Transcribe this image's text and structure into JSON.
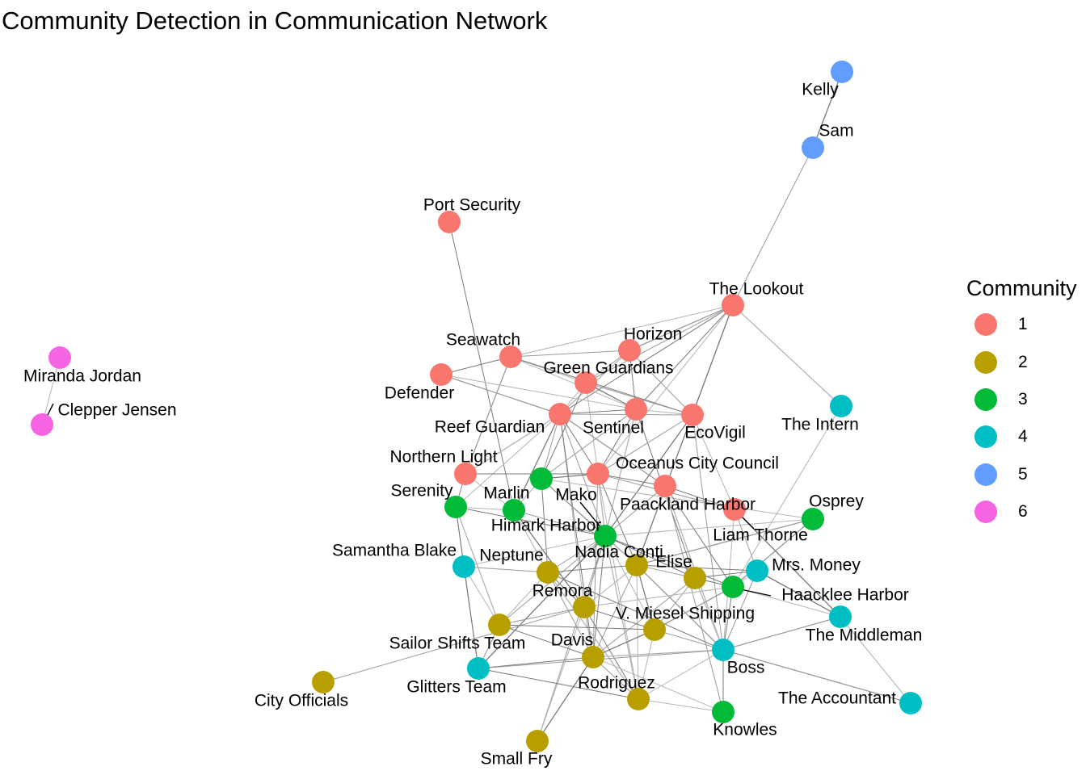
{
  "title": "Community Detection in Communication Network",
  "legend": {
    "title": "Community",
    "items": [
      {
        "label": "1",
        "color": "#F8766D"
      },
      {
        "label": "2",
        "color": "#B79F00"
      },
      {
        "label": "3",
        "color": "#00BA38"
      },
      {
        "label": "4",
        "color": "#00BFC4"
      },
      {
        "label": "5",
        "color": "#619CFF"
      },
      {
        "label": "6",
        "color": "#F564E3"
      }
    ]
  },
  "communities": {
    "1": "#F8766D",
    "2": "#B79F00",
    "3": "#00BA38",
    "4": "#00BFC4",
    "5": "#619CFF",
    "6": "#F564E3"
  },
  "nodes": [
    {
      "id": "Kelly",
      "community": 5
    },
    {
      "id": "Sam",
      "community": 5
    },
    {
      "id": "Port Security",
      "community": 1
    },
    {
      "id": "The Lookout",
      "community": 1
    },
    {
      "id": "Miranda Jordan",
      "community": 6
    },
    {
      "id": "Clepper Jensen",
      "community": 6
    },
    {
      "id": "Seawatch",
      "community": 1
    },
    {
      "id": "Horizon",
      "community": 1
    },
    {
      "id": "Green Guardians",
      "community": 1
    },
    {
      "id": "Defender",
      "community": 1
    },
    {
      "id": "Reef Guardian",
      "community": 1
    },
    {
      "id": "Sentinel",
      "community": 1
    },
    {
      "id": "EcoVigil",
      "community": 1
    },
    {
      "id": "The Intern",
      "community": 4
    },
    {
      "id": "Northern Light",
      "community": 1
    },
    {
      "id": "Oceanus City Council",
      "community": 1
    },
    {
      "id": "Mako",
      "community": 3
    },
    {
      "id": "Serenity",
      "community": 3
    },
    {
      "id": "Marlin",
      "community": 3
    },
    {
      "id": "Paackland Harbor",
      "community": 1
    },
    {
      "id": "Liam Thorne",
      "community": 1
    },
    {
      "id": "Osprey",
      "community": 3
    },
    {
      "id": "Himark Harbor",
      "community": 3
    },
    {
      "id": "Samantha Blake",
      "community": 4
    },
    {
      "id": "Neptune",
      "community": 2
    },
    {
      "id": "Nadia Conti",
      "community": 2
    },
    {
      "id": "Elise",
      "community": 2
    },
    {
      "id": "Mrs. Money",
      "community": 4
    },
    {
      "id": "Haacklee Harbor",
      "community": 3
    },
    {
      "id": "Remora",
      "community": 2
    },
    {
      "id": "V. Miesel Shipping",
      "community": 2
    },
    {
      "id": "The Middleman",
      "community": 4
    },
    {
      "id": "Sailor Shifts Team",
      "community": 2
    },
    {
      "id": "Davis",
      "community": 2
    },
    {
      "id": "Boss",
      "community": 4
    },
    {
      "id": "Glitters Team",
      "community": 4
    },
    {
      "id": "Rodriguez",
      "community": 2
    },
    {
      "id": "City Officials",
      "community": 2
    },
    {
      "id": "The Accountant",
      "community": 4
    },
    {
      "id": "Knowles",
      "community": 3
    },
    {
      "id": "Small Fry",
      "community": 2
    }
  ],
  "edges": [
    [
      "Kelly",
      "Sam"
    ],
    [
      "Sam",
      "The Lookout"
    ],
    [
      "Miranda Jordan",
      "Clepper Jensen"
    ],
    [
      "Port Security",
      "Marlin"
    ],
    [
      "The Lookout",
      "Horizon"
    ],
    [
      "The Lookout",
      "Seawatch"
    ],
    [
      "The Lookout",
      "Sentinel"
    ],
    [
      "The Lookout",
      "Green Guardians"
    ],
    [
      "The Lookout",
      "The Intern"
    ],
    [
      "The Lookout",
      "Reef Guardian"
    ],
    [
      "The Lookout",
      "EcoVigil"
    ],
    [
      "The Lookout",
      "Oceanus City Council"
    ],
    [
      "The Lookout",
      "Nadia Conti"
    ],
    [
      "Seawatch",
      "Horizon"
    ],
    [
      "Seawatch",
      "Green Guardians"
    ],
    [
      "Seawatch",
      "Defender"
    ],
    [
      "Seawatch",
      "Northern Light"
    ],
    [
      "Seawatch",
      "Sentinel"
    ],
    [
      "Seawatch",
      "EcoVigil"
    ],
    [
      "Horizon",
      "Green Guardians"
    ],
    [
      "Horizon",
      "Reef Guardian"
    ],
    [
      "Horizon",
      "Sentinel"
    ],
    [
      "Horizon",
      "EcoVigil"
    ],
    [
      "Green Guardians",
      "Reef Guardian"
    ],
    [
      "Green Guardians",
      "Sentinel"
    ],
    [
      "Green Guardians",
      "EcoVigil"
    ],
    [
      "Green Guardians",
      "Oceanus City Council"
    ],
    [
      "Green Guardians",
      "Mako"
    ],
    [
      "Defender",
      "Reef Guardian"
    ],
    [
      "Defender",
      "Sentinel"
    ],
    [
      "Reef Guardian",
      "Sentinel"
    ],
    [
      "Reef Guardian",
      "EcoVigil"
    ],
    [
      "Reef Guardian",
      "Northern Light"
    ],
    [
      "Reef Guardian",
      "Oceanus City Council"
    ],
    [
      "Reef Guardian",
      "Mako"
    ],
    [
      "Reef Guardian",
      "Serenity"
    ],
    [
      "Reef Guardian",
      "Marlin"
    ],
    [
      "Reef Guardian",
      "Himark Harbor"
    ],
    [
      "Reef Guardian",
      "Remora"
    ],
    [
      "Reef Guardian",
      "Davis"
    ],
    [
      "Reef Guardian",
      "Paackland Harbor"
    ],
    [
      "Sentinel",
      "EcoVigil"
    ],
    [
      "Sentinel",
      "Oceanus City Council"
    ],
    [
      "Sentinel",
      "Mako"
    ],
    [
      "Sentinel",
      "Himark Harbor"
    ],
    [
      "Sentinel",
      "Elise"
    ],
    [
      "EcoVigil",
      "Oceanus City Council"
    ],
    [
      "EcoVigil",
      "Liam Thorne"
    ],
    [
      "EcoVigil",
      "Himark Harbor"
    ],
    [
      "EcoVigil",
      "Boss"
    ],
    [
      "The Intern",
      "Haacklee Harbor"
    ],
    [
      "Northern Light",
      "Oceanus City Council"
    ],
    [
      "Northern Light",
      "Serenity"
    ],
    [
      "Northern Light",
      "Marlin"
    ],
    [
      "Oceanus City Council",
      "Paackland Harbor"
    ],
    [
      "Oceanus City Council",
      "Liam Thorne"
    ],
    [
      "Oceanus City Council",
      "Himark Harbor"
    ],
    [
      "Oceanus City Council",
      "Nadia Conti"
    ],
    [
      "Oceanus City Council",
      "Davis"
    ],
    [
      "Oceanus City Council",
      "Rodriguez"
    ],
    [
      "Oceanus City Council",
      "Mako"
    ],
    [
      "Mako",
      "Himark Harbor"
    ],
    [
      "Mako",
      "Marlin"
    ],
    [
      "Mako",
      "Neptune"
    ],
    [
      "Mako",
      "Nadia Conti"
    ],
    [
      "Mako",
      "Osprey"
    ],
    [
      "Paackland Harbor",
      "Liam Thorne"
    ],
    [
      "Paackland Harbor",
      "Himark Harbor"
    ],
    [
      "Paackland Harbor",
      "Boss"
    ],
    [
      "Paackland Harbor",
      "Haacklee Harbor"
    ],
    [
      "Paackland Harbor",
      "Knowles"
    ],
    [
      "Liam Thorne",
      "Boss"
    ],
    [
      "Liam Thorne",
      "The Middleman"
    ],
    [
      "Liam Thorne",
      "Mrs. Money"
    ],
    [
      "Osprey",
      "Himark Harbor"
    ],
    [
      "Osprey",
      "Haacklee Harbor"
    ],
    [
      "Osprey",
      "Nadia Conti"
    ],
    [
      "Serenity",
      "Marlin"
    ],
    [
      "Serenity",
      "Himark Harbor"
    ],
    [
      "Serenity",
      "Samantha Blake"
    ],
    [
      "Serenity",
      "Sailor Shifts Team"
    ],
    [
      "Serenity",
      "Glitters Team"
    ],
    [
      "Marlin",
      "Himark Harbor"
    ],
    [
      "Marlin",
      "Neptune"
    ],
    [
      "Marlin",
      "Remora"
    ],
    [
      "Himark Harbor",
      "Neptune"
    ],
    [
      "Himark Harbor",
      "Nadia Conti"
    ],
    [
      "Himark Harbor",
      "Elise"
    ],
    [
      "Himark Harbor",
      "Remora"
    ],
    [
      "Himark Harbor",
      "V. Miesel Shipping"
    ],
    [
      "Himark Harbor",
      "Davis"
    ],
    [
      "Himark Harbor",
      "Sailor Shifts Team"
    ],
    [
      "Himark Harbor",
      "Rodriguez"
    ],
    [
      "Himark Harbor",
      "Haacklee Harbor"
    ],
    [
      "Himark Harbor",
      "Small Fry"
    ],
    [
      "Himark Harbor",
      "Samantha Blake"
    ],
    [
      "Himark Harbor",
      "Glitters Team"
    ],
    [
      "Samantha Blake",
      "Neptune"
    ],
    [
      "Samantha Blake",
      "Sailor Shifts Team"
    ],
    [
      "Samantha Blake",
      "Glitters Team"
    ],
    [
      "Neptune",
      "Remora"
    ],
    [
      "Neptune",
      "Sailor Shifts Team"
    ],
    [
      "Neptune",
      "Nadia Conti"
    ],
    [
      "Neptune",
      "Davis"
    ],
    [
      "Neptune",
      "Rodriguez"
    ],
    [
      "Neptune",
      "Boss"
    ],
    [
      "Nadia Conti",
      "Elise"
    ],
    [
      "Nadia Conti",
      "Remora"
    ],
    [
      "Nadia Conti",
      "V. Miesel Shipping"
    ],
    [
      "Nadia Conti",
      "Davis"
    ],
    [
      "Nadia Conti",
      "Haacklee Harbor"
    ],
    [
      "Nadia Conti",
      "Mrs. Money"
    ],
    [
      "Nadia Conti",
      "Boss"
    ],
    [
      "Nadia Conti",
      "Rodriguez"
    ],
    [
      "Elise",
      "Haacklee Harbor"
    ],
    [
      "Elise",
      "V. Miesel Shipping"
    ],
    [
      "Elise",
      "Boss"
    ],
    [
      "Elise",
      "Mrs. Money"
    ],
    [
      "Elise",
      "Davis"
    ],
    [
      "Mrs. Money",
      "Haacklee Harbor"
    ],
    [
      "Mrs. Money",
      "The Middleman"
    ],
    [
      "Mrs. Money",
      "Boss"
    ],
    [
      "Haacklee Harbor",
      "The Middleman"
    ],
    [
      "Haacklee Harbor",
      "Boss"
    ],
    [
      "Haacklee Harbor",
      "V. Miesel Shipping"
    ],
    [
      "Haacklee Harbor",
      "Remora"
    ],
    [
      "Remora",
      "V. Miesel Shipping"
    ],
    [
      "Remora",
      "Sailor Shifts Team"
    ],
    [
      "Remora",
      "Davis"
    ],
    [
      "Remora",
      "Rodriguez"
    ],
    [
      "Remora",
      "City Officials"
    ],
    [
      "Remora",
      "Small Fry"
    ],
    [
      "V. Miesel Shipping",
      "Davis"
    ],
    [
      "V. Miesel Shipping",
      "Boss"
    ],
    [
      "V. Miesel Shipping",
      "Rodriguez"
    ],
    [
      "V. Miesel Shipping",
      "Sailor Shifts Team"
    ],
    [
      "The Middleman",
      "Boss"
    ],
    [
      "The Middleman",
      "The Accountant"
    ],
    [
      "Sailor Shifts Team",
      "Davis"
    ],
    [
      "Sailor Shifts Team",
      "Glitters Team"
    ],
    [
      "Davis",
      "Boss"
    ],
    [
      "Davis",
      "Glitters Team"
    ],
    [
      "Davis",
      "Rodriguez"
    ],
    [
      "Davis",
      "Knowles"
    ],
    [
      "Davis",
      "Small Fry"
    ],
    [
      "Boss",
      "Glitters Team"
    ],
    [
      "Boss",
      "Rodriguez"
    ],
    [
      "Boss",
      "Knowles"
    ],
    [
      "Boss",
      "The Accountant"
    ],
    [
      "Rodriguez",
      "Knowles"
    ],
    [
      "Rodriguez",
      "Glitters Team"
    ]
  ]
}
